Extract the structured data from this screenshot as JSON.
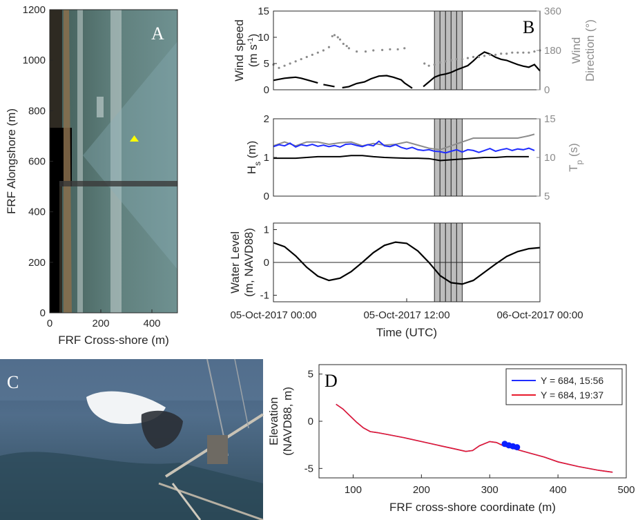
{
  "colors": {
    "axis": "#262626",
    "secondary_axis": "#8c8c8c",
    "wind_speed": "#000000",
    "wind_direction": "#8c8c8c",
    "hs": "#000000",
    "hs_blue": "#1f2cff",
    "tp": "#8c8c8c",
    "water_level": "#000000",
    "shading": "#bdbdbd",
    "profile_1556": "#1f2cff",
    "profile_1937": "#e8192c",
    "marker": "#ffff00",
    "sensor_dots": "#0a1fff"
  },
  "panel_labels": {
    "a": "A",
    "b": "B",
    "c": "C",
    "d": "D"
  },
  "chart_data": [
    {
      "panel": "A",
      "type": "image-map",
      "xlabel": "FRF Cross-shore (m)",
      "ylabel": "FRF Alongshore (m)",
      "xlim": [
        0,
        500
      ],
      "ylim": [
        0,
        1200
      ],
      "xticks": [
        "0",
        "200",
        "400"
      ],
      "yticks": [
        "0",
        "200",
        "400",
        "600",
        "800",
        "1000",
        "1200"
      ],
      "marker": {
        "x": 330,
        "y": 684,
        "shape": "triangle",
        "icon": "yellow-triangle-icon"
      }
    },
    {
      "panel": "B-top",
      "type": "line",
      "ylabel": "Wind speed (m s-1)",
      "ylabel_parts": [
        "Wind speed",
        "(m s",
        "-1",
        ")"
      ],
      "ylim": [
        0,
        15
      ],
      "yticks": [
        "0",
        "5",
        "10",
        "15"
      ],
      "y2label_lines": [
        "Wind",
        "Direction (°)"
      ],
      "y2lim": [
        0,
        360
      ],
      "y2ticks": [
        "0",
        "180",
        "360"
      ],
      "xlim": [
        0,
        24
      ],
      "shaded_periods": [
        [
          14.5,
          15.0
        ],
        [
          15.0,
          15.5
        ],
        [
          15.5,
          16.0
        ],
        [
          16.0,
          16.5
        ],
        [
          16.5,
          17.0
        ]
      ],
      "series": [
        {
          "role": "wind speed",
          "color": "#000000",
          "x": [
            0,
            0.5,
            1,
            1.5,
            2,
            2.5,
            3,
            3.5,
            4,
            4.5,
            5.5,
            6.2,
            6.8,
            7.5,
            8.2,
            8.8,
            9.5,
            10.2,
            10.8,
            11.5,
            11.8,
            12.5
          ],
          "y": [
            1.8,
            2.0,
            2.2,
            2.3,
            2.4,
            2.2,
            1.9,
            1.6,
            1.3,
            1.0,
            0.6,
            0.4,
            0.6,
            1.2,
            1.5,
            2.1,
            2.6,
            2.7,
            2.4,
            1.9,
            1.3,
            0.3
          ]
        },
        {
          "role": "wind speed (late)",
          "color": "#000000",
          "x": [
            13.5,
            14,
            14.5,
            15,
            15.5,
            16,
            16.5,
            17,
            17.5,
            18,
            18.5,
            19,
            19.5,
            20,
            20.5,
            21,
            21.5,
            22,
            22.5,
            23,
            23.5,
            24
          ],
          "y": [
            0.6,
            1.5,
            2.4,
            2.8,
            3.0,
            3.3,
            3.8,
            4.2,
            4.6,
            5.5,
            6.5,
            7.2,
            6.8,
            6.2,
            5.8,
            5.6,
            5.2,
            4.8,
            4.5,
            4.3,
            4.8,
            3.6
          ]
        },
        {
          "role": "wind direction",
          "color": "#8c8c8c",
          "marker": "dot",
          "x": [
            0,
            0.5,
            1,
            1.5,
            2,
            2.5,
            3,
            3.5,
            4,
            4.5,
            5,
            5.3,
            5.5,
            5.8,
            6,
            6.3,
            6.6,
            6.8,
            7.5,
            8.3,
            9,
            9.8,
            10.5,
            11.2,
            11.8,
            13.6,
            14,
            14.5,
            15,
            15.5,
            16,
            16.5,
            17,
            17.5,
            18,
            18.5,
            19,
            19.5,
            20,
            20.5,
            21,
            21.5,
            22,
            22.5,
            23,
            23.5,
            24
          ],
          "y": [
            115,
            100,
            110,
            120,
            130,
            140,
            150,
            160,
            170,
            180,
            195,
            245,
            250,
            240,
            230,
            210,
            200,
            190,
            175,
            175,
            180,
            182,
            185,
            185,
            190,
            120,
            110,
            115,
            125,
            130,
            135,
            140,
            140,
            145,
            150,
            150,
            155,
            160,
            160,
            165,
            165,
            170,
            170,
            170,
            170,
            175,
            180
          ]
        }
      ]
    },
    {
      "panel": "B-middle",
      "type": "line",
      "ylabel": "Hs (m)",
      "ylabel_parts": [
        "H",
        "s",
        " (m)"
      ],
      "ylim": [
        0,
        2
      ],
      "yticks": [
        "0",
        "1",
        "2"
      ],
      "y2label": "Tp (s)",
      "y2label_parts": [
        "T",
        "p",
        " (s)"
      ],
      "y2lim": [
        5,
        15
      ],
      "y2ticks": [
        "5",
        "10",
        "15"
      ],
      "xlim": [
        0,
        24
      ],
      "shaded_periods": [
        [
          14.5,
          15.0
        ],
        [
          15.0,
          15.5
        ],
        [
          15.5,
          16.0
        ],
        [
          16.0,
          16.5
        ],
        [
          16.5,
          17.0
        ]
      ],
      "series": [
        {
          "role": "Hs",
          "color": "#000000",
          "x": [
            0,
            1,
            2,
            3,
            4,
            5,
            6,
            7,
            8,
            9,
            10,
            11,
            12,
            13,
            14,
            15,
            16,
            17,
            18,
            19,
            20,
            21,
            22,
            23
          ],
          "y": [
            0.98,
            0.98,
            0.98,
            1.0,
            1.02,
            1.02,
            1.02,
            1.05,
            1.05,
            1.02,
            1.0,
            0.99,
            0.98,
            0.98,
            0.97,
            0.92,
            0.94,
            0.96,
            0.98,
            1.0,
            1.0,
            1.02,
            1.02,
            1.02
          ]
        },
        {
          "role": "Hs (blue)",
          "color": "#1f2cff",
          "x": [
            0,
            0.5,
            1,
            1.5,
            2,
            2.5,
            3,
            3.5,
            4,
            4.5,
            5,
            5.5,
            6,
            6.5,
            7,
            7.5,
            8,
            8.5,
            9,
            9.5,
            10,
            10.5,
            11,
            11.5,
            12,
            12.5,
            13,
            13.5,
            14,
            14.5,
            15,
            15.5,
            16,
            16.5,
            17,
            17.5,
            18,
            18.5,
            19,
            19.5,
            20,
            20.5,
            21,
            21.5,
            22,
            22.5,
            23,
            23.5
          ],
          "y": [
            1.28,
            1.33,
            1.3,
            1.37,
            1.27,
            1.33,
            1.3,
            1.34,
            1.29,
            1.32,
            1.28,
            1.31,
            1.27,
            1.34,
            1.35,
            1.31,
            1.28,
            1.33,
            1.3,
            1.42,
            1.3,
            1.28,
            1.33,
            1.26,
            1.22,
            1.26,
            1.2,
            1.18,
            1.2,
            1.16,
            1.15,
            1.12,
            1.16,
            1.2,
            1.14,
            1.2,
            1.18,
            1.13,
            1.18,
            1.23,
            1.16,
            1.2,
            1.23,
            1.18,
            1.22,
            1.2,
            1.24,
            1.18
          ]
        },
        {
          "role": "Tp",
          "color": "#8c8c8c",
          "x": [
            0,
            1,
            2,
            3,
            4,
            5,
            6,
            7,
            8,
            9,
            10,
            11,
            12,
            13,
            14,
            15,
            16,
            17,
            18,
            19,
            20,
            21,
            22,
            23,
            23.5
          ],
          "y": [
            11.5,
            12,
            11.5,
            12,
            12,
            11.7,
            11.9,
            12,
            11.5,
            11.8,
            11.6,
            11.7,
            12,
            11.6,
            11.2,
            11,
            11.5,
            12,
            12.5,
            12.5,
            12.5,
            12.5,
            12.5,
            12.8,
            13
          ]
        }
      ]
    },
    {
      "panel": "B-bottom",
      "type": "line",
      "ylabel_lines": [
        "Water Level",
        "(m, NAVD88)"
      ],
      "ylim": [
        -1.2,
        1.2
      ],
      "yticks": [
        "-1",
        "0",
        "1"
      ],
      "xlim": [
        0,
        24
      ],
      "xticks": [
        "05-Oct-2017 00:00",
        "05-Oct-2017 12:00",
        "06-Oct-2017 00:00"
      ],
      "xlabel": "Time (UTC)",
      "zero_line": true,
      "shaded_periods": [
        [
          14.5,
          15.0
        ],
        [
          15.0,
          15.5
        ],
        [
          15.5,
          16.0
        ],
        [
          16.0,
          16.5
        ],
        [
          16.5,
          17.0
        ]
      ],
      "series": [
        {
          "role": "water level",
          "color": "#000000",
          "x": [
            0,
            1,
            2,
            3,
            4,
            5,
            6,
            7,
            8,
            9,
            10,
            11,
            12,
            13,
            14,
            15,
            16,
            17,
            18,
            19,
            20,
            21,
            22,
            23,
            24
          ],
          "y": [
            0.6,
            0.48,
            0.2,
            -0.15,
            -0.42,
            -0.55,
            -0.48,
            -0.28,
            0.0,
            0.3,
            0.52,
            0.62,
            0.58,
            0.35,
            0.0,
            -0.4,
            -0.62,
            -0.66,
            -0.55,
            -0.3,
            -0.05,
            0.18,
            0.33,
            0.42,
            0.45
          ]
        }
      ]
    },
    {
      "panel": "C",
      "type": "photo",
      "description_icon": "wave-breaking-photo-icon"
    },
    {
      "panel": "D",
      "type": "line",
      "xlabel": "FRF cross-shore coordinate (m)",
      "ylabel_lines": [
        "Elevation",
        "(NAVD88, m)"
      ],
      "xlim": [
        50,
        500
      ],
      "ylim": [
        -6,
        6
      ],
      "xticks": [
        "100",
        "200",
        "300",
        "400",
        "500"
      ],
      "yticks": [
        "-5",
        "0",
        "5"
      ],
      "legend_position": "top-right",
      "series": [
        {
          "name": "Y = 684, 15:56",
          "color": "#1f2cff",
          "x": [
            75,
            85,
            95,
            105,
            115,
            125,
            135,
            150,
            175,
            200,
            225,
            250,
            265,
            275,
            285,
            300,
            310,
            320,
            340,
            360,
            380,
            400,
            430,
            460,
            480
          ],
          "y": [
            1.8,
            1.3,
            0.6,
            -0.1,
            -0.7,
            -1.1,
            -1.2,
            -1.4,
            -1.75,
            -2.15,
            -2.55,
            -2.95,
            -3.2,
            -3.1,
            -2.6,
            -2.15,
            -2.25,
            -2.6,
            -3.0,
            -3.4,
            -3.8,
            -4.3,
            -4.8,
            -5.2,
            -5.4
          ]
        },
        {
          "name": "Y = 684, 19:37",
          "color": "#e8192c",
          "x": [
            75,
            85,
            95,
            105,
            115,
            125,
            135,
            150,
            175,
            200,
            225,
            250,
            265,
            275,
            285,
            300,
            310,
            320,
            340,
            360,
            380,
            400,
            430,
            460,
            480
          ],
          "y": [
            1.8,
            1.3,
            0.6,
            -0.1,
            -0.7,
            -1.1,
            -1.2,
            -1.4,
            -1.75,
            -2.15,
            -2.55,
            -2.95,
            -3.2,
            -3.1,
            -2.6,
            -2.15,
            -2.25,
            -2.6,
            -3.0,
            -3.4,
            -3.8,
            -4.3,
            -4.8,
            -5.2,
            -5.4
          ]
        }
      ],
      "points": {
        "color": "#0a1fff",
        "x": [
          322,
          328,
          334,
          340
        ],
        "y": [
          -2.4,
          -2.55,
          -2.65,
          -2.75
        ]
      }
    }
  ]
}
